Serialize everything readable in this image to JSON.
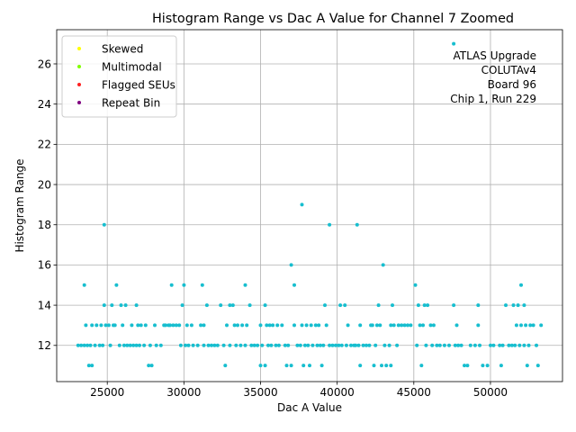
{
  "chart_data": {
    "type": "scatter",
    "title": "Histogram Range vs Dac A Value for Channel 7 Zoomed",
    "xlabel": "Dac A Value",
    "ylabel": "Histogram Range",
    "xlim": [
      21700,
      54700
    ],
    "ylim": [
      10.2,
      27.7
    ],
    "xticks": [
      25000,
      30000,
      35000,
      40000,
      45000,
      50000
    ],
    "yticks": [
      12,
      14,
      16,
      18,
      20,
      22,
      24,
      26
    ],
    "grid": true,
    "legend": {
      "placement": "top-left",
      "entries": [
        {
          "name": "Skewed",
          "color": "#ffff00"
        },
        {
          "name": "Multimodal",
          "color": "#80ff00"
        },
        {
          "name": "Flagged SEUs",
          "color": "#ff2020"
        },
        {
          "name": "Repeat Bin",
          "color": "#800080"
        }
      ]
    },
    "annotation": [
      "ATLAS Upgrade",
      "COLUTAv4",
      "Board 96",
      "Chip 1, Run 229"
    ],
    "point_color": "#17becf",
    "points": [
      [
        23100,
        12
      ],
      [
        23300,
        12
      ],
      [
        23500,
        12
      ],
      [
        23600,
        13
      ],
      [
        23500,
        15
      ],
      [
        23700,
        12
      ],
      [
        23800,
        11
      ],
      [
        23900,
        12
      ],
      [
        24000,
        11
      ],
      [
        24000,
        13
      ],
      [
        24200,
        12
      ],
      [
        24300,
        13
      ],
      [
        24500,
        12
      ],
      [
        24600,
        13
      ],
      [
        24700,
        12
      ],
      [
        24800,
        14
      ],
      [
        24800,
        18
      ],
      [
        24900,
        13
      ],
      [
        25100,
        13
      ],
      [
        25200,
        12
      ],
      [
        25300,
        14
      ],
      [
        25400,
        13
      ],
      [
        25500,
        13
      ],
      [
        25600,
        15
      ],
      [
        25800,
        12
      ],
      [
        25900,
        14
      ],
      [
        26000,
        13
      ],
      [
        26100,
        12
      ],
      [
        26200,
        14
      ],
      [
        26300,
        12
      ],
      [
        26500,
        12
      ],
      [
        26600,
        13
      ],
      [
        26700,
        12
      ],
      [
        26900,
        14
      ],
      [
        26900,
        12
      ],
      [
        27000,
        13
      ],
      [
        27100,
        12
      ],
      [
        27200,
        13
      ],
      [
        27400,
        12
      ],
      [
        27500,
        13
      ],
      [
        27700,
        11
      ],
      [
        27800,
        12
      ],
      [
        27900,
        11
      ],
      [
        28100,
        13
      ],
      [
        28200,
        12
      ],
      [
        28500,
        12
      ],
      [
        28700,
        13
      ],
      [
        28800,
        13
      ],
      [
        29000,
        13
      ],
      [
        29100,
        13
      ],
      [
        29200,
        15
      ],
      [
        29300,
        13
      ],
      [
        29500,
        13
      ],
      [
        29700,
        13
      ],
      [
        29800,
        12
      ],
      [
        29900,
        14
      ],
      [
        30000,
        15
      ],
      [
        30100,
        12
      ],
      [
        30200,
        13
      ],
      [
        30300,
        12
      ],
      [
        30500,
        13
      ],
      [
        30600,
        12
      ],
      [
        30900,
        12
      ],
      [
        31100,
        13
      ],
      [
        31200,
        15
      ],
      [
        31300,
        13
      ],
      [
        31300,
        12
      ],
      [
        31500,
        14
      ],
      [
        31600,
        12
      ],
      [
        31800,
        12
      ],
      [
        32000,
        12
      ],
      [
        32200,
        12
      ],
      [
        32400,
        14
      ],
      [
        32600,
        12
      ],
      [
        32700,
        11
      ],
      [
        32800,
        13
      ],
      [
        33000,
        14
      ],
      [
        33000,
        12
      ],
      [
        33200,
        14
      ],
      [
        33300,
        13
      ],
      [
        33400,
        12
      ],
      [
        33500,
        13
      ],
      [
        33700,
        12
      ],
      [
        33800,
        13
      ],
      [
        34000,
        15
      ],
      [
        34000,
        12
      ],
      [
        34100,
        13
      ],
      [
        34300,
        14
      ],
      [
        34400,
        12
      ],
      [
        34600,
        12
      ],
      [
        34800,
        12
      ],
      [
        35000,
        13
      ],
      [
        35000,
        11
      ],
      [
        35100,
        12
      ],
      [
        35300,
        14
      ],
      [
        35300,
        11
      ],
      [
        35400,
        13
      ],
      [
        35500,
        12
      ],
      [
        35600,
        13
      ],
      [
        35700,
        12
      ],
      [
        35800,
        13
      ],
      [
        36000,
        12
      ],
      [
        36100,
        13
      ],
      [
        36200,
        12
      ],
      [
        36400,
        13
      ],
      [
        36600,
        12
      ],
      [
        36700,
        11
      ],
      [
        36800,
        12
      ],
      [
        37000,
        11
      ],
      [
        37000,
        16
      ],
      [
        37200,
        15
      ],
      [
        37200,
        13
      ],
      [
        37400,
        12
      ],
      [
        37600,
        12
      ],
      [
        37700,
        19
      ],
      [
        37700,
        13
      ],
      [
        37800,
        11
      ],
      [
        37900,
        12
      ],
      [
        38000,
        13
      ],
      [
        38100,
        12
      ],
      [
        38200,
        11
      ],
      [
        38300,
        13
      ],
      [
        38400,
        12
      ],
      [
        38600,
        13
      ],
      [
        38700,
        12
      ],
      [
        38800,
        13
      ],
      [
        38900,
        12
      ],
      [
        39000,
        11
      ],
      [
        39100,
        12
      ],
      [
        39200,
        14
      ],
      [
        39300,
        13
      ],
      [
        39500,
        18
      ],
      [
        39500,
        12
      ],
      [
        39700,
        12
      ],
      [
        39900,
        12
      ],
      [
        40100,
        12
      ],
      [
        40200,
        14
      ],
      [
        40300,
        12
      ],
      [
        40500,
        14
      ],
      [
        40600,
        12
      ],
      [
        40700,
        13
      ],
      [
        40900,
        12
      ],
      [
        41100,
        12
      ],
      [
        41200,
        12
      ],
      [
        41300,
        18
      ],
      [
        41400,
        12
      ],
      [
        41500,
        13
      ],
      [
        41500,
        11
      ],
      [
        41700,
        12
      ],
      [
        41900,
        12
      ],
      [
        42100,
        12
      ],
      [
        42200,
        13
      ],
      [
        42300,
        13
      ],
      [
        42400,
        11
      ],
      [
        42500,
        12
      ],
      [
        42600,
        13
      ],
      [
        42700,
        14
      ],
      [
        42800,
        13
      ],
      [
        42900,
        11
      ],
      [
        43000,
        16
      ],
      [
        43100,
        12
      ],
      [
        43200,
        11
      ],
      [
        43400,
        12
      ],
      [
        43500,
        13
      ],
      [
        43500,
        11
      ],
      [
        43600,
        14
      ],
      [
        43700,
        13
      ],
      [
        43900,
        12
      ],
      [
        44000,
        13
      ],
      [
        44200,
        13
      ],
      [
        44400,
        13
      ],
      [
        44600,
        13
      ],
      [
        44800,
        13
      ],
      [
        45100,
        15
      ],
      [
        45200,
        12
      ],
      [
        45300,
        14
      ],
      [
        45400,
        13
      ],
      [
        45500,
        11
      ],
      [
        45600,
        13
      ],
      [
        45700,
        14
      ],
      [
        45800,
        12
      ],
      [
        45900,
        14
      ],
      [
        46100,
        13
      ],
      [
        46200,
        12
      ],
      [
        46300,
        13
      ],
      [
        46500,
        12
      ],
      [
        46700,
        12
      ],
      [
        47000,
        12
      ],
      [
        47300,
        12
      ],
      [
        47600,
        14
      ],
      [
        47600,
        27
      ],
      [
        47700,
        12
      ],
      [
        47800,
        13
      ],
      [
        47900,
        12
      ],
      [
        48100,
        12
      ],
      [
        48300,
        11
      ],
      [
        48500,
        11
      ],
      [
        48700,
        12
      ],
      [
        49000,
        12
      ],
      [
        49200,
        14
      ],
      [
        49200,
        13
      ],
      [
        49300,
        12
      ],
      [
        49500,
        11
      ],
      [
        49800,
        11
      ],
      [
        50000,
        12
      ],
      [
        50200,
        12
      ],
      [
        50600,
        12
      ],
      [
        50700,
        11
      ],
      [
        50800,
        12
      ],
      [
        51000,
        14
      ],
      [
        51200,
        12
      ],
      [
        51400,
        12
      ],
      [
        51500,
        14
      ],
      [
        51600,
        12
      ],
      [
        51700,
        13
      ],
      [
        51800,
        14
      ],
      [
        51900,
        12
      ],
      [
        52000,
        15
      ],
      [
        52000,
        13
      ],
      [
        52200,
        12
      ],
      [
        52200,
        14
      ],
      [
        52300,
        13
      ],
      [
        52400,
        11
      ],
      [
        52500,
        12
      ],
      [
        52600,
        13
      ],
      [
        52800,
        13
      ],
      [
        53000,
        12
      ],
      [
        53100,
        11
      ],
      [
        53300,
        13
      ]
    ]
  }
}
